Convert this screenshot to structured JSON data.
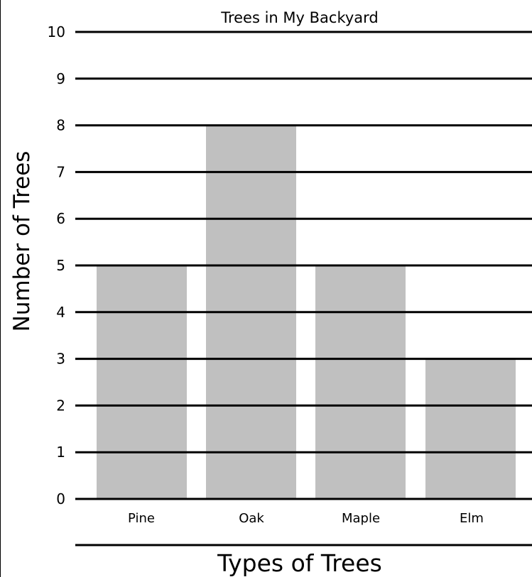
{
  "chart_data": {
    "type": "bar",
    "title": "Trees in My Backyard",
    "xlabel": "Types of Trees",
    "ylabel": "Number of Trees",
    "categories": [
      "Pine",
      "Oak",
      "Maple",
      "Elm"
    ],
    "values": [
      5,
      8,
      5,
      3
    ],
    "ylim": [
      0,
      10
    ],
    "yticks": [
      0,
      1,
      2,
      3,
      4,
      5,
      6,
      7,
      8,
      9,
      10
    ],
    "grid": true,
    "bar_color": "#c0c0c0",
    "grid_color": "#000000"
  }
}
